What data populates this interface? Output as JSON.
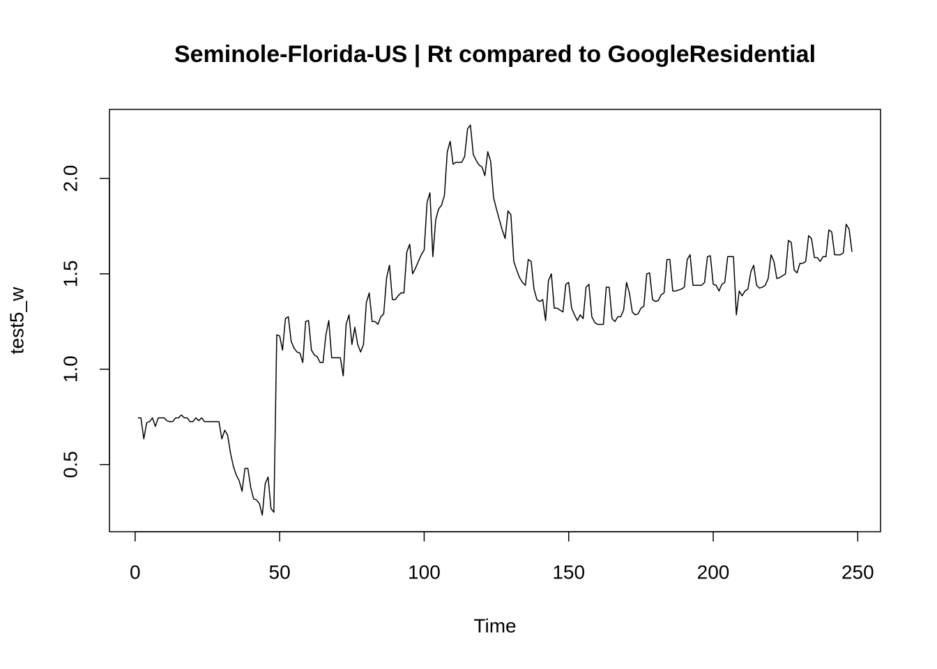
{
  "chart_data": {
    "type": "line",
    "title": "Seminole-Florida-US | Rt compared to GoogleResidential",
    "x_label": "Time",
    "y_label": "test5_w",
    "color": "#000000",
    "x": [
      1,
      2,
      3,
      4,
      5,
      6,
      7,
      8,
      9,
      10,
      11,
      12,
      13,
      14,
      15,
      16,
      17,
      18,
      19,
      20,
      21,
      22,
      23,
      24,
      25,
      26,
      27,
      28,
      29,
      30,
      31,
      32,
      33,
      34,
      35,
      36,
      37,
      38,
      39,
      40,
      41,
      42,
      43,
      44,
      45,
      46,
      47,
      48,
      49,
      50,
      51,
      52,
      53,
      54,
      55,
      56,
      57,
      58,
      59,
      60,
      61,
      62,
      63,
      64,
      65,
      66,
      67,
      68,
      69,
      70,
      71,
      72,
      73,
      74,
      75,
      76,
      77,
      78,
      79,
      80,
      81,
      82,
      83,
      84,
      85,
      86,
      87,
      88,
      89,
      90,
      91,
      92,
      93,
      94,
      95,
      96,
      97,
      98,
      99,
      100,
      101,
      102,
      103,
      104,
      105,
      106,
      107,
      108,
      109,
      110,
      111,
      112,
      113,
      114,
      115,
      116,
      117,
      118,
      119,
      120,
      121,
      122,
      123,
      124,
      125,
      126,
      127,
      128,
      129,
      130,
      131,
      132,
      133,
      134,
      135,
      136,
      137,
      138,
      139,
      140,
      141,
      142,
      143,
      144,
      145,
      146,
      147,
      148,
      149,
      150,
      151,
      152,
      153,
      154,
      155,
      156,
      157,
      158,
      159,
      160,
      161,
      162,
      163,
      164,
      165,
      166,
      167,
      168,
      169,
      170,
      171,
      172,
      173,
      174,
      175,
      176,
      177,
      178,
      179,
      180,
      181,
      182,
      183,
      184,
      185,
      186,
      187,
      188,
      189,
      190,
      191,
      192,
      193,
      194,
      195,
      196,
      197,
      198,
      199,
      200,
      201,
      202,
      203,
      204,
      205,
      206,
      207,
      208,
      209,
      210,
      211,
      212,
      213,
      214,
      215,
      216,
      217,
      218,
      219,
      220,
      221,
      222,
      223,
      224,
      225,
      226,
      227,
      228,
      229,
      230,
      231,
      232,
      233,
      234,
      235,
      236,
      237,
      238,
      239,
      240,
      241,
      242,
      243,
      244,
      245,
      246,
      247,
      248
    ],
    "values": [
      0.745,
      0.745,
      0.635,
      0.72,
      0.725,
      0.745,
      0.7,
      0.745,
      0.745,
      0.745,
      0.73,
      0.725,
      0.725,
      0.745,
      0.745,
      0.76,
      0.745,
      0.745,
      0.725,
      0.725,
      0.745,
      0.73,
      0.745,
      0.725,
      0.725,
      0.725,
      0.725,
      0.725,
      0.725,
      0.635,
      0.68,
      0.655,
      0.56,
      0.49,
      0.445,
      0.415,
      0.36,
      0.48,
      0.48,
      0.38,
      0.32,
      0.315,
      0.295,
      0.235,
      0.4,
      0.435,
      0.27,
      0.25,
      1.18,
      1.175,
      1.1,
      1.265,
      1.275,
      1.145,
      1.11,
      1.09,
      1.085,
      1.035,
      1.25,
      1.255,
      1.1,
      1.075,
      1.065,
      1.035,
      1.035,
      1.18,
      1.255,
      1.06,
      1.06,
      1.06,
      1.06,
      0.965,
      1.235,
      1.285,
      1.13,
      1.22,
      1.13,
      1.09,
      1.13,
      1.35,
      1.4,
      1.25,
      1.25,
      1.235,
      1.275,
      1.29,
      1.48,
      1.545,
      1.365,
      1.365,
      1.385,
      1.4,
      1.4,
      1.615,
      1.655,
      1.5,
      1.53,
      1.565,
      1.6,
      1.625,
      1.875,
      1.925,
      1.59,
      1.785,
      1.84,
      1.86,
      1.91,
      2.14,
      2.195,
      2.075,
      2.085,
      2.085,
      2.085,
      2.115,
      2.26,
      2.28,
      2.125,
      2.095,
      2.07,
      2.06,
      2.015,
      2.14,
      2.09,
      1.9,
      1.84,
      1.785,
      1.73,
      1.685,
      1.83,
      1.81,
      1.565,
      1.52,
      1.48,
      1.455,
      1.44,
      1.575,
      1.565,
      1.42,
      1.365,
      1.355,
      1.365,
      1.255,
      1.465,
      1.5,
      1.32,
      1.32,
      1.31,
      1.3,
      1.445,
      1.455,
      1.32,
      1.285,
      1.255,
      1.285,
      1.265,
      1.43,
      1.445,
      1.275,
      1.245,
      1.235,
      1.235,
      1.235,
      1.43,
      1.43,
      1.265,
      1.25,
      1.275,
      1.275,
      1.31,
      1.455,
      1.4,
      1.3,
      1.285,
      1.29,
      1.32,
      1.33,
      1.5,
      1.505,
      1.365,
      1.355,
      1.36,
      1.39,
      1.4,
      1.575,
      1.575,
      1.41,
      1.41,
      1.415,
      1.42,
      1.43,
      1.575,
      1.6,
      1.44,
      1.44,
      1.44,
      1.44,
      1.455,
      1.59,
      1.595,
      1.445,
      1.44,
      1.41,
      1.445,
      1.455,
      1.59,
      1.59,
      1.59,
      1.285,
      1.41,
      1.385,
      1.41,
      1.42,
      1.51,
      1.545,
      1.44,
      1.425,
      1.43,
      1.44,
      1.475,
      1.6,
      1.565,
      1.475,
      1.48,
      1.49,
      1.5,
      1.675,
      1.665,
      1.52,
      1.505,
      1.555,
      1.555,
      1.565,
      1.7,
      1.685,
      1.585,
      1.585,
      1.565,
      1.59,
      1.59,
      1.73,
      1.72,
      1.6,
      1.6,
      1.6,
      1.61,
      1.76,
      1.735,
      1.615
    ],
    "xlim": [
      -8.88,
      257.88
    ],
    "ylim": [
      0.148,
      2.362
    ],
    "xticks": [
      0,
      50,
      100,
      150,
      200,
      250
    ],
    "yticks": [
      0.5,
      {
        "value": 1.0,
        "label": "1.0"
      },
      1.5,
      {
        "value": 2.0,
        "label": "2.0"
      }
    ]
  }
}
